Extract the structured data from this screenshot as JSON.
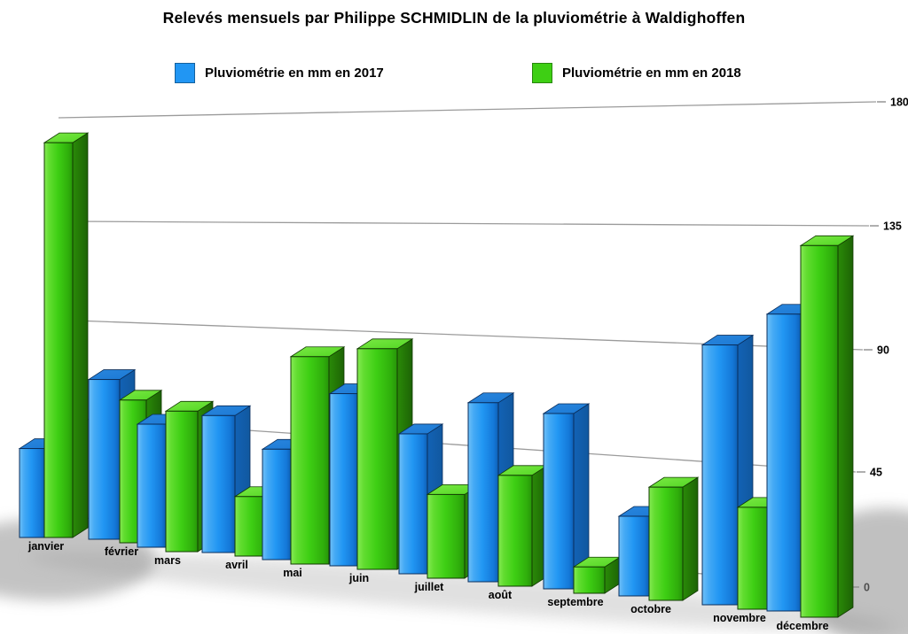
{
  "title": "Relevés mensuels par Philippe SCHMIDLIN de la pluviométrie à Waldighoffen",
  "legend": {
    "item_2017": "Pluviométrie en mm en 2017",
    "item_2018": "Pluviométrie en mm en 2018"
  },
  "chart_data": {
    "type": "bar",
    "style": "3d-perspective-grouped",
    "title": "Relevés mensuels par Philippe SCHMIDLIN de la pluviométrie à Waldighoffen",
    "categories": [
      "janvier",
      "février",
      "mars",
      "avril",
      "mai",
      "juin",
      "juillet",
      "août",
      "septembre",
      "octobre",
      "novembre",
      "décembre"
    ],
    "series": [
      {
        "name": "Pluviométrie en mm en 2017",
        "color": "#2196f3",
        "color_light": "#6fc0f8",
        "color_dark": "#0e5fb4",
        "color_side": "#11589f",
        "color_top": "#1b79d4",
        "values": [
          40,
          70,
          53,
          58,
          46,
          70,
          56,
          70,
          67,
          30,
          95,
          107
        ]
      },
      {
        "name": "Pluviométrie en mm en 2018",
        "color": "#3ecf14",
        "color_light": "#86ea54",
        "color_dark": "#27940a",
        "color_side": "#1d6305",
        "color_top": "#52d723",
        "values": [
          176,
          62,
          60,
          25,
          85,
          89,
          33,
          43,
          10,
          42,
          37,
          133
        ]
      }
    ],
    "xlabel": "",
    "ylabel": "",
    "yticks": [
      0,
      45,
      90,
      135,
      180
    ],
    "ylim": [
      0,
      180
    ],
    "unit": "mm",
    "grid": true,
    "gridline_color": "#9b9b9b",
    "legend_position": "top",
    "background": "#ffffff",
    "text_color": "#000000"
  }
}
